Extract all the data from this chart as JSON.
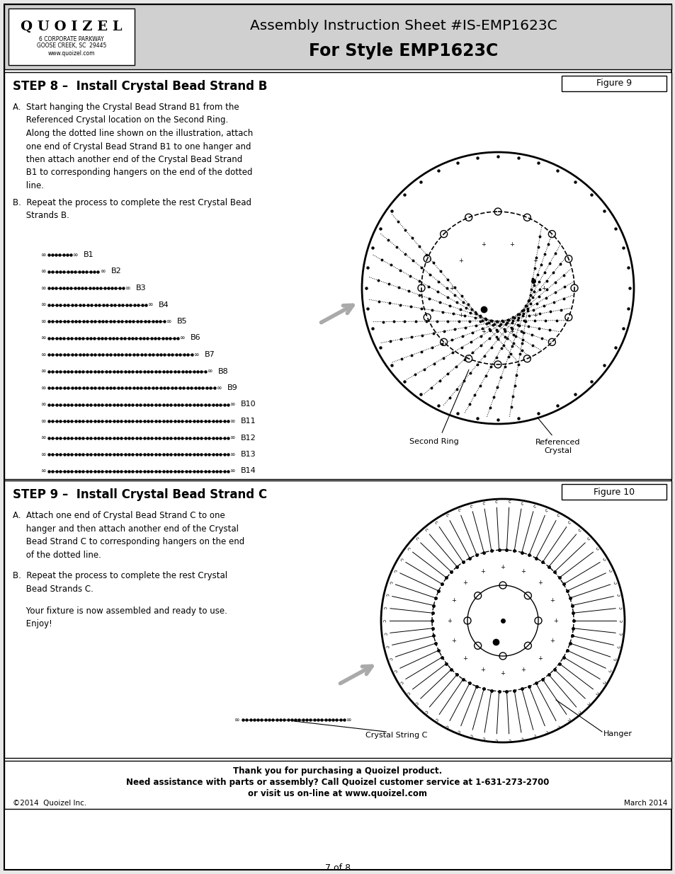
{
  "bg_color": "#e8e8e8",
  "white": "#ffffff",
  "black": "#000000",
  "gray": "#888888",
  "light_gray": "#d0d0d0",
  "title_line1": "Assembly Instruction Sheet #IS-EMP1623C",
  "title_line2": "For Style EMP1623C",
  "logo_name": "Q U O I Z E L",
  "logo_addr1": "6 CORPORATE PARKWAY",
  "logo_addr2": "GOOSE CREEK, SC  29445",
  "logo_addr3": "www.quoizel.com",
  "step8_title": "STEP 8 –  Install Crystal Bead Strand B",
  "step9_title": "STEP 9 –  Install Crystal Bead Strand C",
  "footer_line1": "Thank you for purchasing a Quoizel product.",
  "footer_line2": "Need assistance with parts or assembly? Call Quoizel customer service at 1-631-273-2700",
  "footer_line3": "or visit us on-line at www.quoizel.com",
  "footer_copyright": "©2014  Quoizel Inc.",
  "footer_date": "March 2014",
  "footer_page": "7 of 8",
  "fig9_label": "Figure 9",
  "fig10_label": "Figure 10",
  "second_ring_label": "Second Ring",
  "ref_crystal_label": "Referenced\nCrystal",
  "hanger_label": "Hanger",
  "crystal_string_label": "Crystal String C",
  "bead_strands_B": [
    "B1",
    "B2",
    "B3",
    "B4",
    "B5",
    "B6",
    "B7",
    "B8",
    "B9",
    "B10",
    "B11",
    "B12",
    "B13",
    "B14"
  ],
  "bead_lengths_B": [
    0.13,
    0.25,
    0.36,
    0.46,
    0.54,
    0.6,
    0.66,
    0.72,
    0.76,
    0.82,
    0.82,
    0.82,
    0.82,
    0.82
  ]
}
